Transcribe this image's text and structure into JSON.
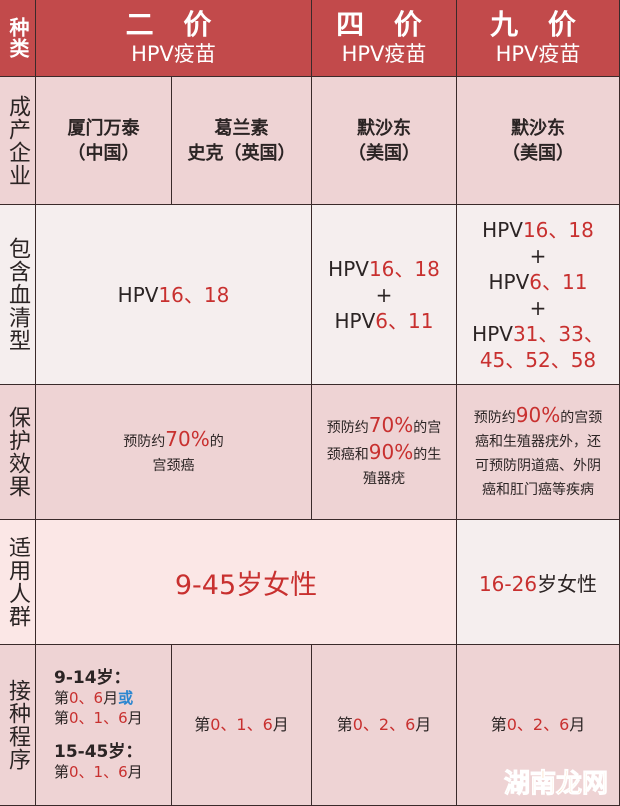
{
  "colors": {
    "header": "#c24a4b",
    "highlight": "#c8302f",
    "blue": "#2a86d0"
  },
  "header": {
    "corner": "种类",
    "cols": [
      {
        "title": "二 价",
        "sub": "HPV疫苗"
      },
      {
        "title": "四 价",
        "sub": "HPV疫苗"
      },
      {
        "title": "九 价",
        "sub": "HPV疫苗"
      }
    ]
  },
  "rows": {
    "maker": {
      "label": "成产企业",
      "cells": [
        [
          [
            {
              "t": "厦门万泰"
            }
          ],
          [
            {
              "t": "（中国）"
            }
          ]
        ],
        [
          [
            {
              "t": "葛兰素"
            }
          ],
          [
            {
              "t": "史克（英国）"
            }
          ]
        ],
        [
          [
            {
              "t": "默沙东"
            }
          ],
          [
            {
              "t": "（美国）"
            }
          ]
        ],
        [
          [
            {
              "t": "默沙东"
            }
          ],
          [
            {
              "t": "（美国）"
            }
          ]
        ]
      ]
    },
    "serotype": {
      "label": "包含血清型",
      "cells": [
        [
          [
            {
              "t": "HPV"
            },
            {
              "t": "16、18",
              "s": "r"
            }
          ]
        ],
        [
          [
            {
              "t": "HPV"
            },
            {
              "t": "16、18",
              "s": "r"
            }
          ],
          [
            {
              "t": "+"
            }
          ],
          [
            {
              "t": "HPV"
            },
            {
              "t": "6、11",
              "s": "r"
            }
          ]
        ],
        [
          [
            {
              "t": "HPV"
            },
            {
              "t": "16、18",
              "s": "r"
            }
          ],
          [
            {
              "t": "+"
            }
          ],
          [
            {
              "t": "HPV"
            },
            {
              "t": "6、11",
              "s": "r"
            }
          ],
          [
            {
              "t": "+"
            }
          ],
          [
            {
              "t": "HPV"
            },
            {
              "t": "31、33、",
              "s": "r"
            }
          ],
          [
            {
              "t": "45、52、58",
              "s": "r"
            }
          ]
        ]
      ]
    },
    "protection": {
      "label": "保护效果",
      "cells": [
        [
          [
            {
              "t": "预防约"
            },
            {
              "t": "70%",
              "s": "r"
            },
            {
              "t": "的"
            }
          ],
          [
            {
              "t": "宫颈癌"
            }
          ]
        ],
        [
          [
            {
              "t": "预防约"
            },
            {
              "t": "70%",
              "s": "r"
            },
            {
              "t": "的宫"
            }
          ],
          [
            {
              "t": "颈癌和"
            },
            {
              "t": "90%",
              "s": "r"
            },
            {
              "t": "的生"
            }
          ],
          [
            {
              "t": "殖器疣"
            }
          ]
        ],
        [
          [
            {
              "t": "预防约"
            },
            {
              "t": "90%",
              "s": "r"
            },
            {
              "t": "的宫颈"
            }
          ],
          [
            {
              "t": "癌和生殖器疣外，还"
            }
          ],
          [
            {
              "t": "可预防阴道癌、外阴"
            }
          ],
          [
            {
              "t": "癌和肛门癌等疾病"
            }
          ]
        ]
      ]
    },
    "population": {
      "label": "适用人群",
      "cells": [
        [
          [
            {
              "t": "9-45",
              "s": "r"
            },
            {
              "t": "岁女性",
              "s": "r"
            }
          ]
        ],
        [
          [
            {
              "t": "16-26",
              "s": "r"
            },
            {
              "t": "岁女性"
            }
          ]
        ]
      ]
    },
    "schedule": {
      "label": "接种程序",
      "cells": [
        [
          [
            {
              "t": "9-14岁：",
              "s": "bold"
            }
          ],
          [
            {
              "t": "第"
            },
            {
              "t": "0、6",
              "s": "r"
            },
            {
              "t": "月"
            },
            {
              "t": "或",
              "s": "b"
            }
          ],
          [
            {
              "t": "第"
            },
            {
              "t": "0、1、6",
              "s": "r"
            },
            {
              "t": "月"
            }
          ],
          [],
          [
            {
              "t": "15-45岁：",
              "s": "bold"
            }
          ],
          [
            {
              "t": "第"
            },
            {
              "t": "0、1、6",
              "s": "r"
            },
            {
              "t": "月"
            }
          ]
        ],
        [
          [
            {
              "t": "第"
            },
            {
              "t": "0、1、6",
              "s": "r"
            },
            {
              "t": "月"
            }
          ]
        ],
        [
          [
            {
              "t": "第"
            },
            {
              "t": "0、2、6",
              "s": "r"
            },
            {
              "t": "月"
            }
          ]
        ],
        [
          [
            {
              "t": "第"
            },
            {
              "t": "0、2、6",
              "s": "r"
            },
            {
              "t": "月"
            }
          ]
        ]
      ]
    }
  },
  "watermark": "湖南龙网"
}
